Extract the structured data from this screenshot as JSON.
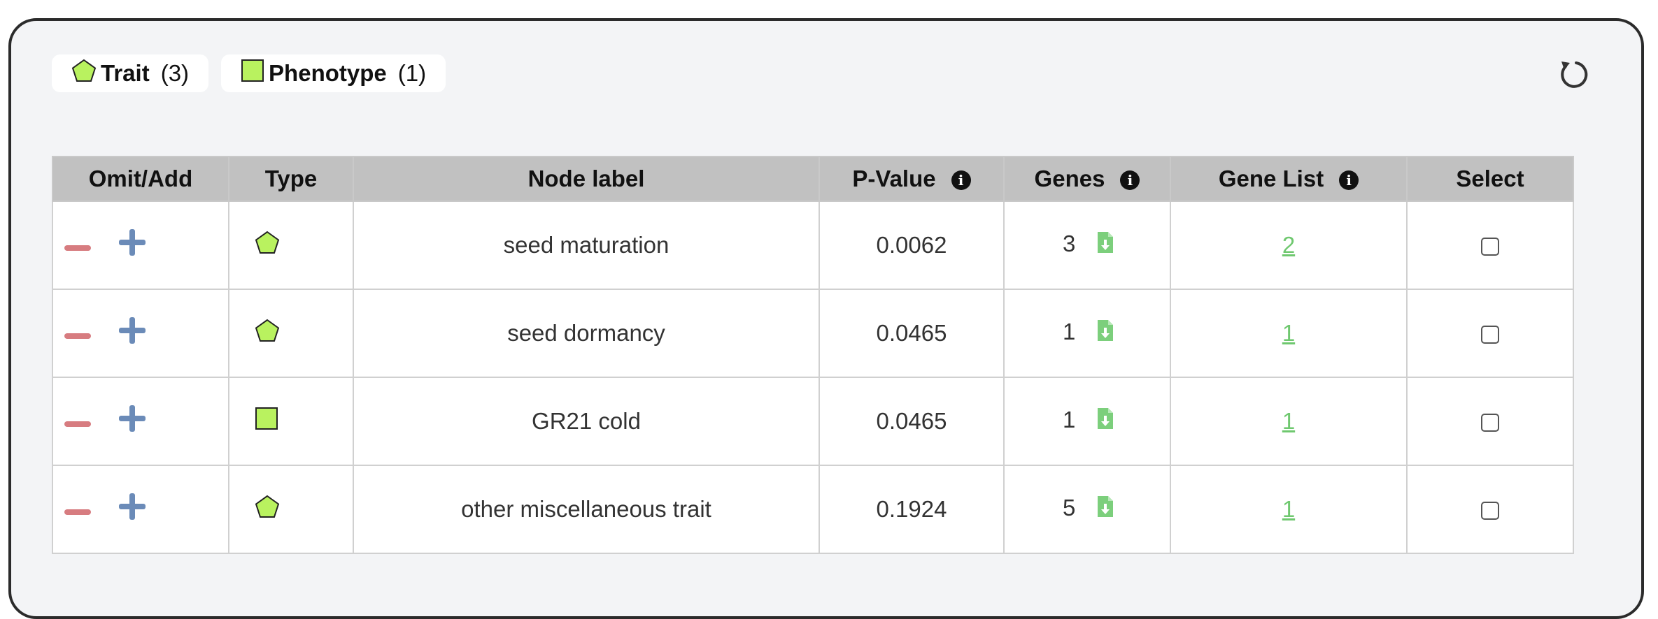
{
  "legend": [
    {
      "shape": "pentagon",
      "label": "Trait",
      "count": "(3)"
    },
    {
      "shape": "square",
      "label": "Phenotype",
      "count": "(1)"
    }
  ],
  "colors": {
    "shape_fill": "#b9f25f",
    "minus": "#d77c80",
    "plus": "#6b8bb8",
    "link": "#6fc86f",
    "header_bg": "#c1c1c1"
  },
  "table": {
    "headers": {
      "omit_add": "Omit/Add",
      "type": "Type",
      "node_label": "Node label",
      "p_value": "P-Value",
      "genes": "Genes",
      "gene_list": "Gene List",
      "select": "Select"
    },
    "info_icon": "i",
    "rows": [
      {
        "type": "pentagon",
        "node_label": "seed maturation",
        "p_value": "0.0062",
        "genes": "3",
        "gene_list": "2",
        "selected": false
      },
      {
        "type": "pentagon",
        "node_label": "seed dormancy",
        "p_value": "0.0465",
        "genes": "1",
        "gene_list": "1",
        "selected": false
      },
      {
        "type": "square",
        "node_label": "GR21 cold",
        "p_value": "0.0465",
        "genes": "1",
        "gene_list": "1",
        "selected": false
      },
      {
        "type": "pentagon",
        "node_label": "other miscellaneous trait",
        "p_value": "0.1924",
        "genes": "5",
        "gene_list": "1",
        "selected": false
      }
    ]
  }
}
